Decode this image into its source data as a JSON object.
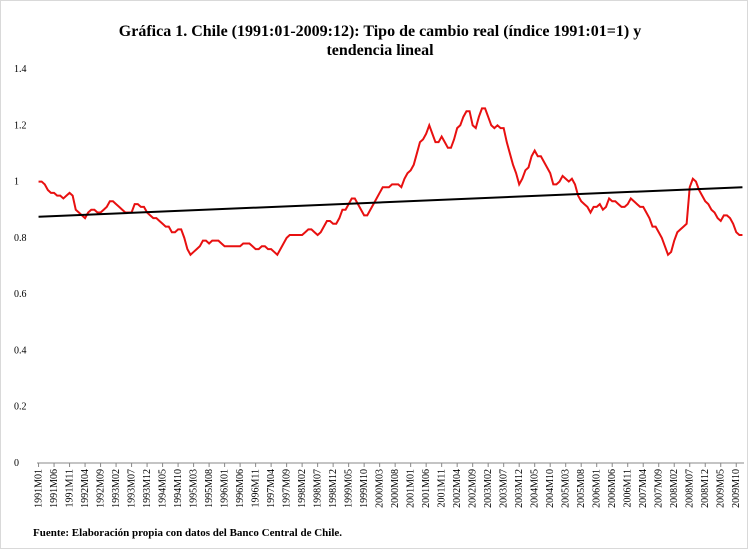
{
  "chart_data": {
    "type": "line",
    "title": [
      "Gráfica 1. Chile (1991:01-2009:12): Tipo de cambio real (índice 1991:01=1) y",
      "tendencia lineal"
    ],
    "note": "Fuente: Elaboración  propia con datos del Banco Central de Chile.",
    "categories": [
      "1991M01",
      null,
      null,
      null,
      null,
      "1991M06",
      null,
      null,
      null,
      null,
      "1991M11",
      null,
      null,
      null,
      null,
      "1992M04",
      null,
      null,
      null,
      null,
      "1992M09",
      null,
      null,
      null,
      null,
      "1993M02",
      null,
      null,
      null,
      null,
      "1993M07",
      null,
      null,
      null,
      null,
      "1993M12",
      null,
      null,
      null,
      null,
      "1994M05",
      null,
      null,
      null,
      null,
      "1994M10",
      null,
      null,
      null,
      null,
      "1995M03",
      null,
      null,
      null,
      null,
      "1995M08",
      null,
      null,
      null,
      null,
      "1996M01",
      null,
      null,
      null,
      null,
      "1996M06",
      null,
      null,
      null,
      null,
      "1996M11",
      null,
      null,
      null,
      null,
      "1997M04",
      null,
      null,
      null,
      null,
      "1997M09",
      null,
      null,
      null,
      null,
      "1998M02",
      null,
      null,
      null,
      null,
      "1998M07",
      null,
      null,
      null,
      null,
      "1998M12",
      null,
      null,
      null,
      null,
      "1999M05",
      null,
      null,
      null,
      null,
      "1999M10",
      null,
      null,
      null,
      null,
      "2000M03",
      null,
      null,
      null,
      null,
      "2000M08",
      null,
      null,
      null,
      null,
      "2001M01",
      null,
      null,
      null,
      null,
      "2001M06",
      null,
      null,
      null,
      null,
      "2001M11",
      null,
      null,
      null,
      null,
      "2002M04",
      null,
      null,
      null,
      null,
      "2002M09",
      null,
      null,
      null,
      null,
      "2003M02",
      null,
      null,
      null,
      null,
      "2003M07",
      null,
      null,
      null,
      null,
      "2003M12",
      null,
      null,
      null,
      null,
      "2004M05",
      null,
      null,
      null,
      null,
      "2004M10",
      null,
      null,
      null,
      null,
      "2005M03",
      null,
      null,
      null,
      null,
      "2005M08",
      null,
      null,
      null,
      null,
      "2006M01",
      null,
      null,
      null,
      null,
      "2006M06",
      null,
      null,
      null,
      null,
      "2006M11",
      null,
      null,
      null,
      null,
      "2007M04",
      null,
      null,
      null,
      null,
      "2007M09",
      null,
      null,
      null,
      null,
      "2008M02",
      null,
      null,
      null,
      null,
      "2008M07",
      null,
      null,
      null,
      null,
      "2008M12",
      null,
      null,
      null,
      null,
      "2009M05",
      null,
      null,
      null,
      null,
      "2009M10",
      null,
      null
    ],
    "series": [
      {
        "color": "#e81010",
        "values": [
          1.0,
          1.0,
          0.99,
          0.97,
          0.96,
          0.96,
          0.95,
          0.95,
          0.94,
          0.95,
          0.96,
          0.95,
          0.9,
          0.89,
          0.88,
          0.87,
          0.89,
          0.9,
          0.9,
          0.89,
          0.89,
          0.9,
          0.91,
          0.93,
          0.93,
          0.92,
          0.91,
          0.9,
          0.89,
          0.89,
          0.89,
          0.92,
          0.92,
          0.91,
          0.91,
          0.89,
          0.88,
          0.87,
          0.87,
          0.86,
          0.85,
          0.84,
          0.84,
          0.82,
          0.82,
          0.83,
          0.83,
          0.8,
          0.76,
          0.74,
          0.75,
          0.76,
          0.77,
          0.79,
          0.79,
          0.78,
          0.79,
          0.79,
          0.79,
          0.78,
          0.77,
          0.77,
          0.77,
          0.77,
          0.77,
          0.77,
          0.78,
          0.78,
          0.78,
          0.77,
          0.76,
          0.76,
          0.77,
          0.77,
          0.76,
          0.76,
          0.75,
          0.74,
          0.76,
          0.78,
          0.8,
          0.81,
          0.81,
          0.81,
          0.81,
          0.81,
          0.82,
          0.83,
          0.83,
          0.82,
          0.81,
          0.82,
          0.84,
          0.86,
          0.86,
          0.85,
          0.85,
          0.87,
          0.9,
          0.9,
          0.92,
          0.94,
          0.94,
          0.92,
          0.9,
          0.88,
          0.88,
          0.9,
          0.92,
          0.94,
          0.96,
          0.98,
          0.98,
          0.98,
          0.99,
          0.99,
          0.99,
          0.98,
          1.01,
          1.03,
          1.04,
          1.06,
          1.1,
          1.14,
          1.15,
          1.17,
          1.2,
          1.17,
          1.14,
          1.14,
          1.16,
          1.14,
          1.12,
          1.12,
          1.15,
          1.19,
          1.2,
          1.23,
          1.25,
          1.25,
          1.2,
          1.19,
          1.23,
          1.26,
          1.26,
          1.23,
          1.2,
          1.19,
          1.2,
          1.19,
          1.19,
          1.14,
          1.1,
          1.06,
          1.03,
          0.99,
          1.01,
          1.04,
          1.05,
          1.09,
          1.11,
          1.09,
          1.09,
          1.07,
          1.05,
          1.03,
          0.99,
          0.99,
          1.0,
          1.02,
          1.01,
          1.0,
          1.01,
          0.99,
          0.95,
          0.93,
          0.92,
          0.91,
          0.89,
          0.91,
          0.91,
          0.92,
          0.9,
          0.91,
          0.94,
          0.93,
          0.93,
          0.92,
          0.91,
          0.91,
          0.92,
          0.94,
          0.93,
          0.92,
          0.91,
          0.91,
          0.89,
          0.87,
          0.84,
          0.84,
          0.82,
          0.8,
          0.77,
          0.74,
          0.75,
          0.79,
          0.82,
          0.83,
          0.84,
          0.85,
          0.98,
          1.01,
          1.0,
          0.97,
          0.95,
          0.93,
          0.92,
          0.9,
          0.89,
          0.87,
          0.86,
          0.88,
          0.88,
          0.87,
          0.85,
          0.82,
          0.81,
          0.81
        ]
      }
    ],
    "trend": {
      "color": "#000000",
      "start": 0.875,
      "end": 0.98
    },
    "ylim": [
      0,
      1.4
    ],
    "yticks": [
      0,
      0.2,
      0.4,
      0.6,
      0.8,
      1,
      1.2,
      1.4
    ],
    "grid": false
  }
}
